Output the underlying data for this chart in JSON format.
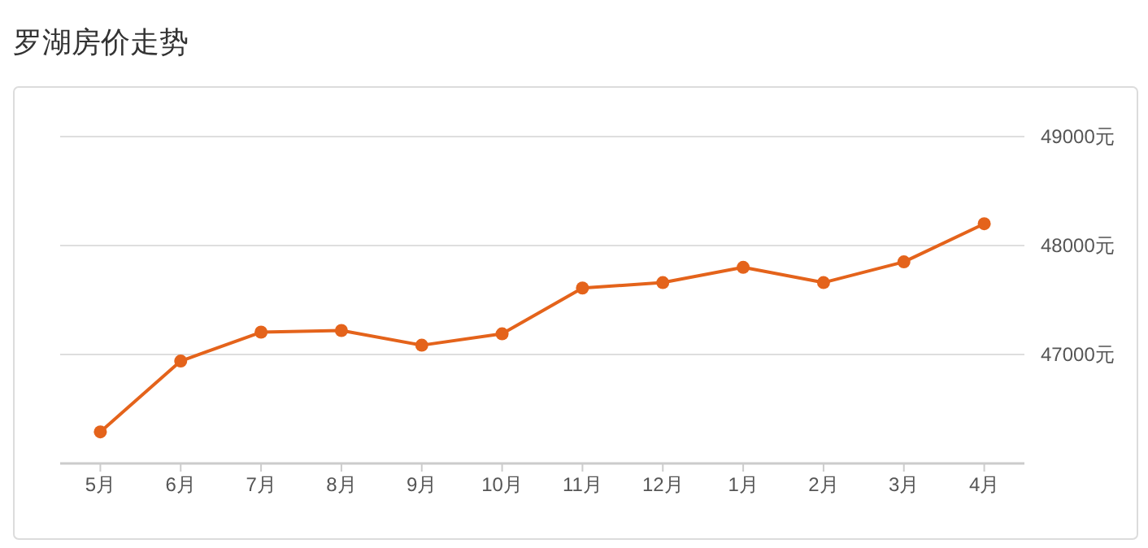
{
  "chart_data": {
    "type": "line",
    "title": "罗湖房价走势",
    "categories": [
      "5月",
      "6月",
      "7月",
      "8月",
      "9月",
      "10月",
      "11月",
      "12月",
      "1月",
      "2月",
      "3月",
      "4月"
    ],
    "series": [
      {
        "color": "#e4631b",
        "values": [
          46290,
          46940,
          47205,
          47220,
          47085,
          47190,
          47610,
          47660,
          47800,
          47660,
          47850,
          48200
        ]
      }
    ],
    "ylim": [
      46000,
      49000
    ],
    "yticks": [
      {
        "value": 47000,
        "label": "47000元"
      },
      {
        "value": 48000,
        "label": "48000元"
      },
      {
        "value": 49000,
        "label": "49000元"
      }
    ],
    "grid": "y",
    "marker": "circle"
  }
}
